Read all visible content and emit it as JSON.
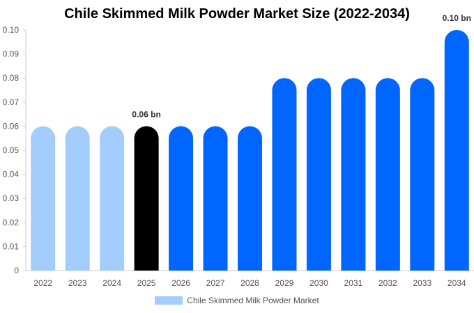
{
  "chart_data": {
    "type": "bar",
    "title": "Chile Skimmed Milk Powder Market Size (2022-2034)",
    "xlabel": "",
    "ylabel": "",
    "categories": [
      "2022",
      "2023",
      "2024",
      "2025",
      "2026",
      "2027",
      "2028",
      "2029",
      "2030",
      "2031",
      "2032",
      "2033",
      "2034"
    ],
    "series": [
      {
        "name": "Chile Skimmed Milk Powder Market",
        "values": [
          0.06,
          0.06,
          0.06,
          0.06,
          0.06,
          0.06,
          0.06,
          0.08,
          0.08,
          0.08,
          0.08,
          0.08,
          0.1
        ]
      }
    ],
    "ylim": [
      0,
      0.1
    ],
    "yticks": [
      "0",
      "0.01",
      "0.02",
      "0.03",
      "0.04",
      "0.05",
      "0.06",
      "0.07",
      "0.08",
      "0.09",
      "0.10"
    ],
    "annotations": [
      {
        "category": "2025",
        "text": "0.06 bn"
      },
      {
        "category": "2034",
        "text": "0.10 bn"
      }
    ],
    "bar_colors": [
      "#a3cdfd",
      "#a3cdfd",
      "#a3cdfd",
      "#000000",
      "#0066ff",
      "#0066ff",
      "#0066ff",
      "#0066ff",
      "#0066ff",
      "#0066ff",
      "#0066ff",
      "#0066ff",
      "#0066ff"
    ],
    "grid": false,
    "legend_position": "bottom"
  },
  "legend": {
    "label": "Chile Skimmed Milk Powder Market",
    "color": "#a3cdfd"
  }
}
